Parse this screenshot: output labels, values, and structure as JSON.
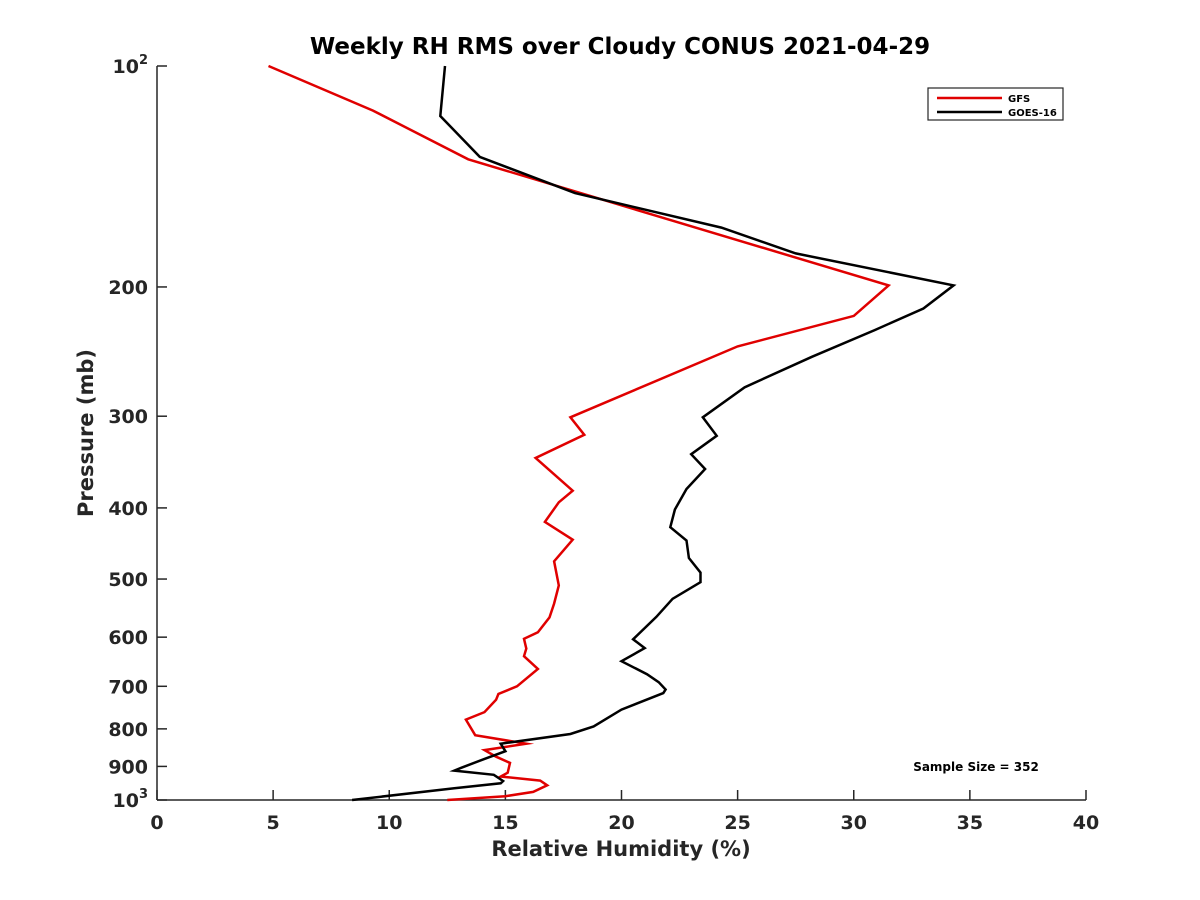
{
  "chart_data": {
    "type": "line",
    "title": "Weekly RH RMS over Cloudy CONUS 2021-04-29",
    "xlabel": "Relative Humidity (%)",
    "ylabel": "Pressure (mb)",
    "xlim": [
      0,
      40
    ],
    "ylim": [
      100,
      1000
    ],
    "y_scale": "log",
    "y_reversed": true,
    "grid": false,
    "x_ticks": [
      {
        "value": 0,
        "label": "0"
      },
      {
        "value": 5,
        "label": "5"
      },
      {
        "value": 10,
        "label": "10"
      },
      {
        "value": 15,
        "label": "15"
      },
      {
        "value": 20,
        "label": "20"
      },
      {
        "value": 25,
        "label": "25"
      },
      {
        "value": 30,
        "label": "30"
      },
      {
        "value": 35,
        "label": "35"
      },
      {
        "value": 40,
        "label": "40"
      }
    ],
    "y_ticks": [
      {
        "value": 100,
        "label": "",
        "base": "10",
        "exp": "2"
      },
      {
        "value": 200,
        "label": "200"
      },
      {
        "value": 300,
        "label": "300"
      },
      {
        "value": 400,
        "label": "400"
      },
      {
        "value": 500,
        "label": "500"
      },
      {
        "value": 600,
        "label": "600"
      },
      {
        "value": 700,
        "label": "700"
      },
      {
        "value": 800,
        "label": "800"
      },
      {
        "value": 900,
        "label": "900"
      },
      {
        "value": 1000,
        "label": "",
        "base": "10",
        "exp": "3"
      }
    ],
    "legend_position": "top-right",
    "annotation": "Sample Size = 352",
    "series": [
      {
        "name": "GFS",
        "color": "#e00000",
        "points": [
          [
            4.8,
            100
          ],
          [
            9.3,
            115
          ],
          [
            13.4,
            134
          ],
          [
            21.5,
            160
          ],
          [
            31.5,
            199
          ],
          [
            30.0,
            219
          ],
          [
            25.0,
            241
          ],
          [
            17.8,
            301
          ],
          [
            18.4,
            318
          ],
          [
            16.3,
            342
          ],
          [
            17.9,
            379
          ],
          [
            17.3,
            393
          ],
          [
            16.7,
            418
          ],
          [
            17.9,
            442
          ],
          [
            17.1,
            473
          ],
          [
            17.3,
            510
          ],
          [
            17.1,
            540
          ],
          [
            16.9,
            564
          ],
          [
            16.4,
            591
          ],
          [
            15.8,
            603
          ],
          [
            15.9,
            622
          ],
          [
            15.8,
            637
          ],
          [
            16.4,
            663
          ],
          [
            15.5,
            700
          ],
          [
            14.7,
            717
          ],
          [
            14.6,
            730
          ],
          [
            14.1,
            759
          ],
          [
            13.3,
            777
          ],
          [
            13.7,
            816
          ],
          [
            15.9,
            838
          ],
          [
            14.1,
            855
          ],
          [
            14.6,
            873
          ],
          [
            15.2,
            890
          ],
          [
            15.1,
            918
          ],
          [
            14.8,
            929
          ],
          [
            16.5,
            941
          ],
          [
            16.8,
            955
          ],
          [
            16.2,
            975
          ],
          [
            15.0,
            988
          ],
          [
            12.5,
            1000
          ]
        ]
      },
      {
        "name": "GOES-16",
        "color": "#000000",
        "points": [
          [
            12.4,
            100
          ],
          [
            12.2,
            117
          ],
          [
            13.9,
            133
          ],
          [
            18.0,
            149
          ],
          [
            24.3,
            166
          ],
          [
            27.5,
            180
          ],
          [
            34.3,
            199
          ],
          [
            33.0,
            214
          ],
          [
            30.9,
            229
          ],
          [
            28.2,
            249
          ],
          [
            25.3,
            274
          ],
          [
            23.5,
            301
          ],
          [
            24.1,
            319
          ],
          [
            23.0,
            338
          ],
          [
            23.6,
            354
          ],
          [
            22.8,
            377
          ],
          [
            22.3,
            402
          ],
          [
            22.1,
            425
          ],
          [
            22.8,
            443
          ],
          [
            22.9,
            468
          ],
          [
            23.4,
            490
          ],
          [
            23.4,
            505
          ],
          [
            22.2,
            532
          ],
          [
            21.5,
            563
          ],
          [
            20.5,
            604
          ],
          [
            21.0,
            621
          ],
          [
            20.0,
            647
          ],
          [
            21.1,
            674
          ],
          [
            21.6,
            691
          ],
          [
            21.9,
            707
          ],
          [
            21.8,
            715
          ],
          [
            20.0,
            753
          ],
          [
            18.8,
            794
          ],
          [
            17.8,
            813
          ],
          [
            14.8,
            838
          ],
          [
            15.0,
            858
          ],
          [
            14.1,
            879
          ],
          [
            13.1,
            904
          ],
          [
            12.8,
            912
          ],
          [
            14.5,
            924
          ],
          [
            14.9,
            942
          ],
          [
            14.8,
            949
          ],
          [
            12.8,
            964
          ],
          [
            8.4,
            1000
          ]
        ]
      }
    ]
  }
}
